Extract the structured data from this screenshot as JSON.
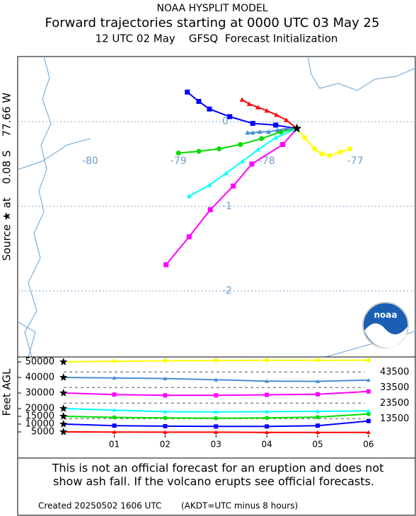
{
  "header": {
    "title": "NOAA HYSPLIT MODEL",
    "subtitle": "Forward trajectories starting at 0000 UTC 03 May 25",
    "run": "12 UTC 02 May    GFSQ  Forecast Initialization"
  },
  "chart_data": [
    {
      "type": "trajectory",
      "side_label": "Source ★ at    0.08 S    77.66 W",
      "source": {
        "lon": -77.66,
        "lat": -0.08
      },
      "xlim": [
        -80.82,
        -76.32
      ],
      "ylim": [
        -2.78,
        0.77
      ],
      "xticks": [
        -80,
        -79,
        -78,
        -77
      ],
      "yticks": [
        0,
        -1,
        -2
      ],
      "grid": true,
      "logo_text": "noaa",
      "series": [
        {
          "color": "#ff0000",
          "marker": "triangle",
          "lon": [
            -77.66,
            -77.78,
            -77.89,
            -78.0,
            -78.1,
            -78.2,
            -78.28
          ],
          "lat": [
            -0.08,
            0.02,
            0.08,
            0.13,
            0.17,
            0.21,
            0.26
          ]
        },
        {
          "color": "#0000ff",
          "marker": "square",
          "lon": [
            -77.66,
            -77.9,
            -78.16,
            -78.42,
            -78.65,
            -78.77,
            -78.9
          ],
          "lat": [
            -0.08,
            -0.04,
            -0.02,
            0.06,
            0.15,
            0.24,
            0.35
          ]
        },
        {
          "color": "#00dd00",
          "marker": "circle",
          "lon": [
            -77.66,
            -77.84,
            -78.06,
            -78.3,
            -78.54,
            -78.77,
            -79.0
          ],
          "lat": [
            -0.08,
            -0.12,
            -0.2,
            -0.27,
            -0.32,
            -0.35,
            -0.37
          ]
        },
        {
          "color": "#00ffff",
          "marker": "triangle",
          "lon": [
            -77.66,
            -77.9,
            -78.1,
            -78.28,
            -78.46,
            -78.65,
            -78.88
          ],
          "lat": [
            -0.08,
            -0.19,
            -0.33,
            -0.47,
            -0.61,
            -0.75,
            -0.88
          ]
        },
        {
          "color": "#ff00ff",
          "marker": "square",
          "lon": [
            -77.66,
            -77.82,
            -78.17,
            -78.38,
            -78.64,
            -78.88,
            -79.14
          ],
          "lat": [
            -0.08,
            -0.27,
            -0.5,
            -0.76,
            -1.04,
            -1.36,
            -1.69
          ]
        },
        {
          "color": "#4a8fd4",
          "marker": "triangle",
          "lon": [
            -77.66,
            -77.78,
            -77.88,
            -77.98,
            -78.08,
            -78.16,
            -78.22
          ],
          "lat": [
            -0.08,
            -0.08,
            -0.1,
            -0.12,
            -0.12,
            -0.13,
            -0.13
          ]
        },
        {
          "color": "#ffff00",
          "marker": "circle",
          "lon": [
            -77.66,
            -77.57,
            -77.46,
            -77.38,
            -77.29,
            -77.17,
            -77.06
          ],
          "lat": [
            -0.08,
            -0.19,
            -0.32,
            -0.38,
            -0.4,
            -0.36,
            -0.32
          ]
        }
      ]
    },
    {
      "type": "line",
      "y_label": "Feet AGL",
      "x": [
        0,
        1,
        2,
        3,
        4,
        5,
        6
      ],
      "xlim": [
        -0.9,
        6.92
      ],
      "xticks": [
        {
          "value": 1,
          "label": "01"
        },
        {
          "value": 2,
          "label": "02"
        },
        {
          "value": 3,
          "label": "03"
        },
        {
          "value": 4,
          "label": "04"
        },
        {
          "value": 5,
          "label": "05"
        },
        {
          "value": 6,
          "label": "06"
        }
      ],
      "ylim": [
        3000,
        53000
      ],
      "yticks": [
        5000,
        10000,
        15000,
        20000,
        30000,
        40000,
        50000
      ],
      "ref_lines": [
        43500,
        33500,
        23500,
        13500
      ],
      "series": [
        {
          "color": "#ff0000",
          "marker": "triangle",
          "values": [
            5000,
            4900,
            4800,
            4800,
            4700,
            4700,
            4700
          ]
        },
        {
          "color": "#0000ff",
          "marker": "square",
          "values": [
            10000,
            9000,
            8700,
            8500,
            8500,
            9000,
            12000
          ]
        },
        {
          "color": "#00dd00",
          "marker": "circle",
          "values": [
            15000,
            14300,
            14000,
            13800,
            14000,
            14500,
            16500
          ]
        },
        {
          "color": "#00ffff",
          "marker": "triangle",
          "values": [
            20000,
            19000,
            18000,
            17800,
            18000,
            18200,
            18500
          ]
        },
        {
          "color": "#ff00ff",
          "marker": "square",
          "values": [
            30000,
            29000,
            28500,
            28500,
            28800,
            29200,
            31000
          ]
        },
        {
          "color": "#4a8fd4",
          "marker": "triangle",
          "values": [
            40000,
            39700,
            39300,
            38500,
            37600,
            37500,
            38300
          ]
        },
        {
          "color": "#ffff00",
          "marker": "circle",
          "values": [
            50000,
            50400,
            50700,
            50900,
            51000,
            51000,
            51100
          ]
        }
      ]
    }
  ],
  "footer": {
    "disclaimer_1": "This is not an official forecast for an eruption and does not",
    "disclaimer_2": "show ash fall. If the volcano erupts see official forecasts.",
    "created": "Created 20250502 1606 UTC",
    "timezone": "(AKDT=UTC minus 8 hours)"
  }
}
